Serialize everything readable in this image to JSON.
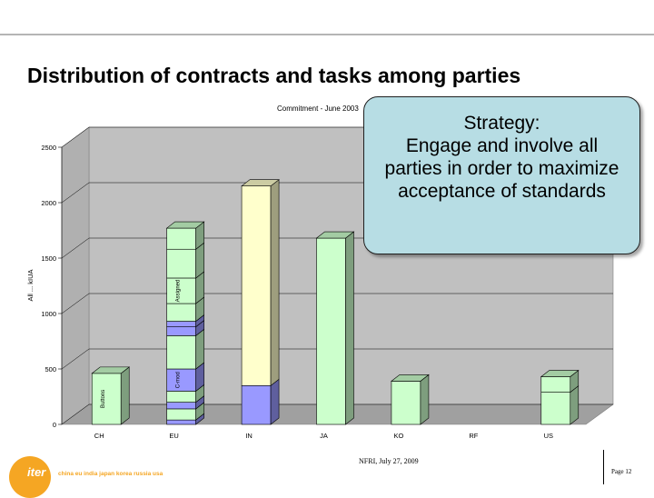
{
  "slide": {
    "title": "Distribution of contracts and tasks among parties"
  },
  "callout": {
    "heading": "Strategy:",
    "body": "Engage and involve all parties in order to maximize acceptance of standards"
  },
  "footer": {
    "logo_text": "iter",
    "members": "china eu india japan korea russia usa",
    "meeting": "NFRI, July 27, 2009",
    "page": "Page 12"
  },
  "colors": {
    "light_green": "#ccffcc",
    "light_yellow": "#ffffcc",
    "blue_violet": "#9999ff",
    "wall_gray": "#c0c0c0",
    "floor_gray": "#a0a0a0"
  },
  "chart_data": {
    "type": "bar",
    "title": "Commitment - June 2003",
    "ylabel": "All ... kIUA",
    "ylim": [
      0,
      2500
    ],
    "yticks": [
      "0",
      "500",
      "1000",
      "1500",
      "2000",
      "2500"
    ],
    "grid": true,
    "categories": [
      "CH",
      "EU",
      "IN",
      "JA",
      "KO",
      "RF",
      "US"
    ],
    "stacks": [
      {
        "category": "CH",
        "segments": [
          {
            "value": 460,
            "color": "light_green",
            "label": "Buttons"
          }
        ]
      },
      {
        "category": "EU",
        "segments": [
          {
            "value": 40,
            "color": "blue_violet"
          },
          {
            "value": 100,
            "color": "light_green"
          },
          {
            "value": 60,
            "color": "blue_violet"
          },
          {
            "value": 100,
            "color": "light_green"
          },
          {
            "value": 200,
            "color": "blue_violet",
            "label": "C-mod"
          },
          {
            "value": 300,
            "color": "light_green"
          },
          {
            "value": 80,
            "color": "blue_violet"
          },
          {
            "value": 50,
            "color": "blue_violet"
          },
          {
            "value": 160,
            "color": "light_green"
          },
          {
            "value": 230,
            "color": "light_green",
            "label": "Assigned"
          },
          {
            "value": 260,
            "color": "light_green"
          },
          {
            "value": 190,
            "color": "light_green"
          }
        ]
      },
      {
        "category": "IN",
        "segments": [
          {
            "value": 350,
            "color": "blue_violet"
          },
          {
            "value": 1800,
            "color": "light_yellow"
          }
        ]
      },
      {
        "category": "JA",
        "segments": [
          {
            "value": 1680,
            "color": "light_green"
          }
        ]
      },
      {
        "category": "KO",
        "segments": [
          {
            "value": 390,
            "color": "light_green"
          }
        ]
      },
      {
        "category": "RF",
        "segments": []
      },
      {
        "category": "US",
        "segments": [
          {
            "value": 290,
            "color": "light_green"
          },
          {
            "value": 140,
            "color": "light_green"
          }
        ]
      }
    ]
  }
}
